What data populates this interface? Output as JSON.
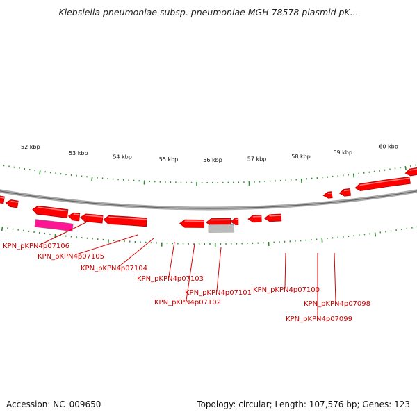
{
  "title": "Klebsiella pneumoniae subsp. pneumoniae MGH 78578 plasmid pK...",
  "footer": {
    "accession": "Accession: NC_009650",
    "topology": "Topology: circular; Length: 107,576 bp; Genes: 123"
  },
  "colors": {
    "gene": "#ff0000",
    "gene_dark": "#b30000",
    "pseudo_gene": "#bbbbbb",
    "highlight_gene": "#ff1493",
    "tick": "#2e8b2e",
    "backbone": "#888888",
    "label": "#cc0000"
  },
  "kbp_labels": [
    "60 kbp",
    "59 kbp",
    "58 kbp",
    "57 kbp",
    "56 kbp",
    "55 kbp",
    "54 kbp",
    "53 kbp",
    "52 kbp"
  ],
  "gene_labels": [
    "KPN_pKPN4p07106",
    "KPN_pKPN4p07105",
    "KPN_pKPN4p07104",
    "KPN_pKPN4p07103",
    "KPN_pKPN4p07102",
    "KPN_pKPN4p07101",
    "KPN_pKPN4p07100",
    "KPN_pKPN4p07099",
    "KPN_pKPN4p07098"
  ]
}
